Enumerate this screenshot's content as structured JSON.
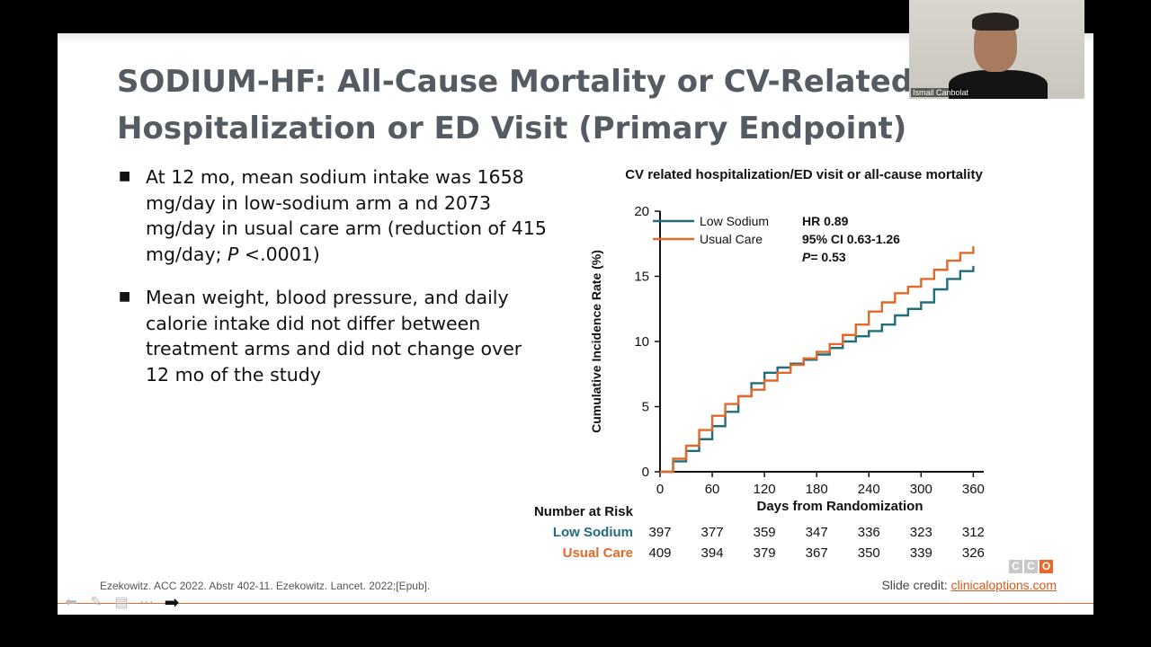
{
  "slide": {
    "title_line1": "SODIUM-HF: All-Cause Mortality or CV-Related",
    "title_line2": "Hospitalization or ED Visit (Primary Endpoint)",
    "bullets": [
      {
        "pre": "At 12 mo, mean sodium intake was 1658 mg/day in low-sodium arm a nd 2073 mg/day in usual care arm (reduction of 415 mg/day; ",
        "p": "P",
        "post": " <.0001)"
      },
      {
        "pre": "Mean weight, blood pressure, and daily calorie intake did not differ between treatment arms and did not change over 12 mo of the study",
        "p": "",
        "post": ""
      }
    ],
    "reference": "Ezekowitz. ACC 2022. Abstr 402-11. Ezekowitz. Lancet. 2022;[Epub].",
    "credit_label": "Slide credit: ",
    "credit_link": "clinicaloptions.com",
    "logo_letters": [
      "C",
      "C",
      "O"
    ]
  },
  "webcam": {
    "name": "Ismail Canbolat"
  },
  "nav_icons": [
    "back-arrow-icon",
    "pen-icon",
    "slides-icon",
    "more-icon",
    "next-arrow-icon"
  ],
  "colors": {
    "low_sodium": "#1f6e7a",
    "usual_care": "#e3692b",
    "title": "#555b63",
    "accent": "#e8672a"
  },
  "chart_data": {
    "type": "line",
    "title": "CV related hospitalization/ED visit or all-cause mortality",
    "xlabel": "Days from Randomization",
    "ylabel": "Cumulative Incidence Rate (%)",
    "xlim": [
      0,
      372
    ],
    "ylim": [
      0,
      20
    ],
    "x_ticks": [
      0,
      60,
      120,
      180,
      240,
      300,
      360
    ],
    "y_ticks": [
      0,
      5,
      10,
      15,
      20
    ],
    "series": [
      {
        "name": "Low Sodium",
        "color": "#1f6e7a",
        "x": [
          0,
          15,
          30,
          45,
          60,
          75,
          90,
          105,
          120,
          135,
          150,
          165,
          180,
          195,
          210,
          225,
          240,
          255,
          270,
          285,
          300,
          315,
          330,
          345,
          360
        ],
        "y": [
          0,
          0.8,
          1.6,
          2.5,
          3.5,
          4.6,
          5.8,
          6.8,
          7.6,
          8.0,
          8.3,
          8.6,
          9.0,
          9.5,
          10.0,
          10.4,
          10.8,
          11.3,
          12.0,
          12.5,
          13.0,
          14.0,
          14.8,
          15.4,
          15.8
        ]
      },
      {
        "name": "Usual Care",
        "color": "#e3692b",
        "x": [
          0,
          15,
          30,
          45,
          60,
          75,
          90,
          105,
          120,
          135,
          150,
          165,
          180,
          195,
          210,
          225,
          240,
          255,
          270,
          285,
          300,
          315,
          330,
          345,
          360
        ],
        "y": [
          0,
          1.0,
          2.0,
          3.2,
          4.3,
          5.2,
          5.8,
          6.3,
          7.0,
          7.6,
          8.2,
          8.7,
          9.2,
          9.8,
          10.5,
          11.3,
          12.3,
          13.0,
          13.7,
          14.2,
          14.8,
          15.5,
          16.2,
          16.8,
          17.3
        ]
      }
    ],
    "annotations": {
      "hr": "HR 0.89",
      "ci": "95% CI 0.63-1.26",
      "p_label": "P",
      "p_value": "= 0.53"
    },
    "risk_table": {
      "header": "Number at Risk",
      "days": [
        "0",
        "60",
        "120",
        "180",
        "240",
        "300",
        "360"
      ],
      "rows": [
        {
          "label": "Low Sodium",
          "color": "#1f6e7a",
          "values": [
            "397",
            "377",
            "359",
            "347",
            "336",
            "323",
            "312"
          ]
        },
        {
          "label": "Usual Care",
          "color": "#e3692b",
          "values": [
            "409",
            "394",
            "379",
            "367",
            "350",
            "339",
            "326"
          ]
        }
      ]
    }
  }
}
